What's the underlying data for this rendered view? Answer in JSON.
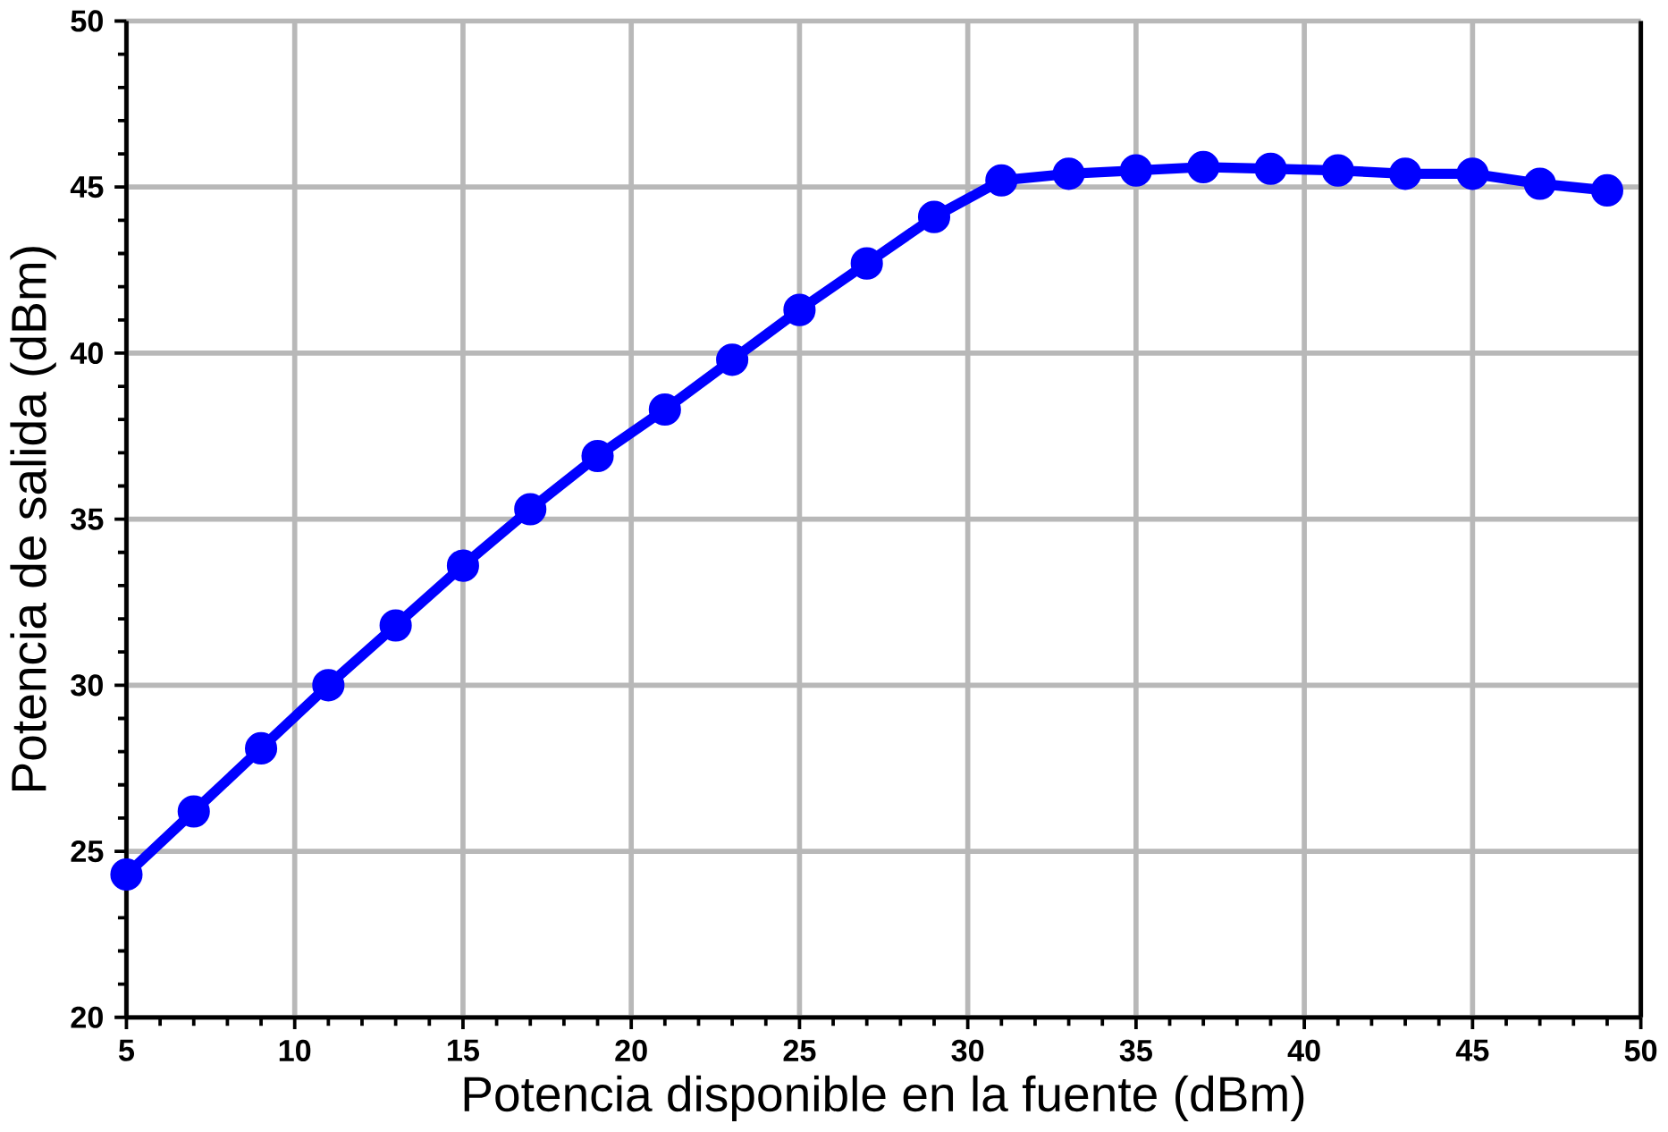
{
  "chart_data": {
    "type": "line",
    "xlabel": "Potencia disponible en la fuente (dBm)",
    "ylabel": "Potencia de salida (dBm)",
    "x": [
      5,
      7,
      9,
      11,
      13,
      15,
      17,
      19,
      21,
      23,
      25,
      27,
      29,
      31,
      33,
      35,
      37,
      39,
      41,
      43,
      45,
      47,
      49
    ],
    "series": [
      {
        "color": "#0000ff",
        "values": [
          24.3,
          26.2,
          28.1,
          30.0,
          31.8,
          33.6,
          35.3,
          36.9,
          38.3,
          39.8,
          41.3,
          42.7,
          44.1,
          45.2,
          45.4,
          45.5,
          45.6,
          45.55,
          45.5,
          45.4,
          45.4,
          45.1,
          44.9
        ]
      }
    ],
    "xlim": [
      5,
      50
    ],
    "ylim": [
      20,
      50
    ],
    "xticks": [
      5,
      10,
      15,
      20,
      25,
      30,
      35,
      40,
      45,
      50
    ],
    "yticks": [
      20,
      25,
      30,
      35,
      40,
      45,
      50
    ],
    "grid": true,
    "marker": "circle",
    "line_style": "solid"
  }
}
